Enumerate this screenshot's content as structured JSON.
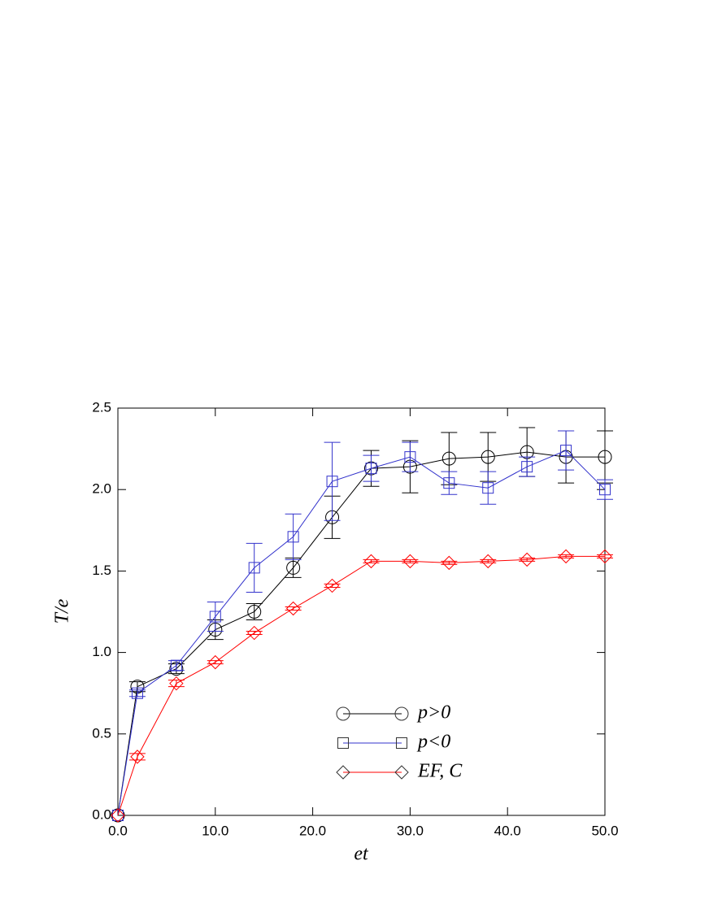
{
  "chart_data": {
    "type": "line",
    "x_label": "et",
    "y_label": "T/e",
    "x": [
      0,
      2,
      6,
      10,
      14,
      18,
      22,
      26,
      30,
      34,
      38,
      42,
      46,
      50
    ],
    "series": [
      {
        "name": "p>0",
        "color": "#000000",
        "marker": "circle",
        "values": [
          0,
          0.79,
          0.9,
          1.14,
          1.25,
          1.52,
          1.83,
          2.13,
          2.14,
          2.19,
          2.2,
          2.23,
          2.2,
          2.2
        ],
        "errors": [
          0,
          0.03,
          0.03,
          0.06,
          0.05,
          0.06,
          0.13,
          0.11,
          0.16,
          0.16,
          0.15,
          0.15,
          0.16,
          0.16
        ]
      },
      {
        "name": "p<0",
        "color": "#3333cc",
        "marker": "square",
        "values": [
          0,
          0.75,
          0.92,
          1.22,
          1.52,
          1.71,
          2.05,
          2.13,
          2.2,
          2.04,
          2.01,
          2.14,
          2.24,
          2.0
        ],
        "errors": [
          0,
          0.02,
          0.03,
          0.09,
          0.15,
          0.14,
          0.24,
          0.08,
          0.09,
          0.07,
          0.1,
          0.06,
          0.12,
          0.06
        ]
      },
      {
        "name": "EF, C",
        "color": "#ff0000",
        "marker": "diamond",
        "values": [
          0,
          0.36,
          0.81,
          0.94,
          1.12,
          1.27,
          1.41,
          1.56,
          1.56,
          1.55,
          1.56,
          1.57,
          1.59,
          1.59
        ],
        "errors": [
          0,
          0.02,
          0.02,
          0.01,
          0.01,
          0.01,
          0.01,
          0.01,
          0.01,
          0.01,
          0.01,
          0.01,
          0.01,
          0.01
        ]
      }
    ],
    "xlim": [
      0,
      50
    ],
    "xticks": [
      {
        "value": 0,
        "label": "0.0"
      },
      {
        "value": 10,
        "label": "10.0"
      },
      {
        "value": 20,
        "label": "20.0"
      },
      {
        "value": 30,
        "label": "30.0"
      },
      {
        "value": 40,
        "label": "40.0"
      },
      {
        "value": 50,
        "label": "50.0"
      }
    ],
    "ylim": [
      0,
      2.5
    ],
    "yticks": [
      {
        "value": 0,
        "label": "0.0"
      },
      {
        "value": 0.5,
        "label": "0.5"
      },
      {
        "value": 1,
        "label": "1.0"
      },
      {
        "value": 1.5,
        "label": "1.5"
      },
      {
        "value": 2,
        "label": "2.0"
      },
      {
        "value": 2.5,
        "label": "2.5"
      }
    ],
    "grid": false,
    "legend": "lower center"
  }
}
